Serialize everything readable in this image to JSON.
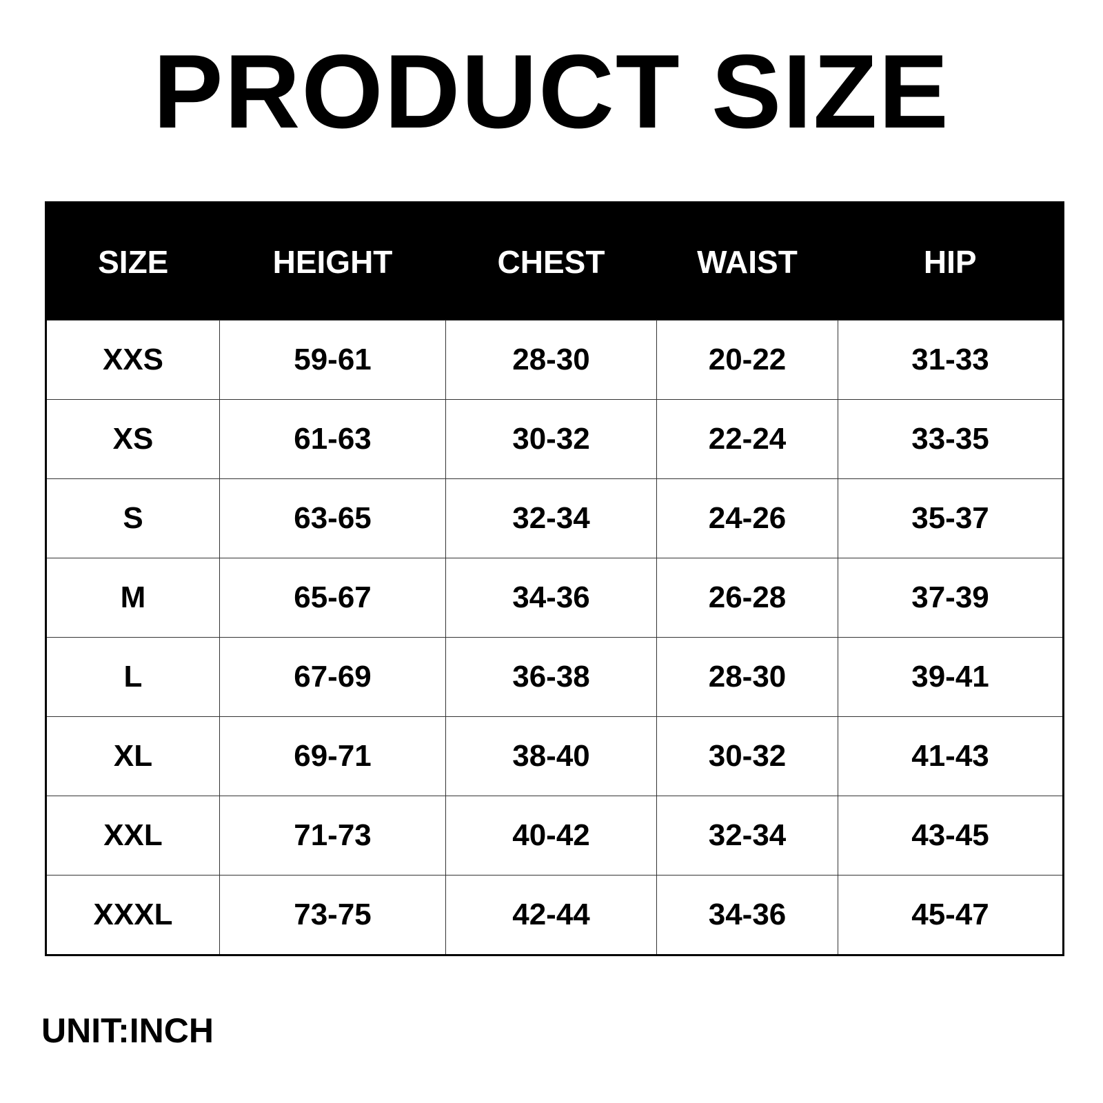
{
  "title": "PRODUCT SIZE",
  "table": {
    "headers": [
      "SIZE",
      "HEIGHT",
      "CHEST",
      "WAIST",
      "HIP"
    ],
    "rows": [
      [
        "XXS",
        "59-61",
        "28-30",
        "20-22",
        "31-33"
      ],
      [
        "XS",
        "61-63",
        "30-32",
        "22-24",
        "33-35"
      ],
      [
        "S",
        "63-65",
        "32-34",
        "24-26",
        "35-37"
      ],
      [
        "M",
        "65-67",
        "34-36",
        "26-28",
        "37-39"
      ],
      [
        "L",
        "67-69",
        "36-38",
        "28-30",
        "39-41"
      ],
      [
        "XL",
        "69-71",
        "38-40",
        "30-32",
        "41-43"
      ],
      [
        "XXL",
        "71-73",
        "40-42",
        "32-34",
        "43-45"
      ],
      [
        "XXXL",
        "73-75",
        "42-44",
        "34-36",
        "45-47"
      ]
    ]
  },
  "unit": "UNIT:INCH"
}
